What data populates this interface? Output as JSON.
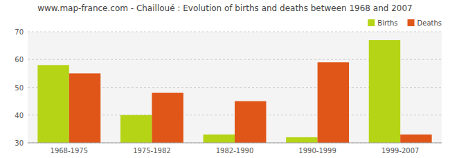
{
  "chart_data": {
    "type": "bar",
    "title": "www.map-france.com - Chailloué : Evolution of births and deaths between 1968 and 2007",
    "categories": [
      "1968-1975",
      "1975-1982",
      "1982-1990",
      "1990-1999",
      "1999-2007"
    ],
    "series": [
      {
        "name": "Births",
        "color": "#b5d416",
        "values": [
          58,
          40,
          33,
          32,
          67
        ]
      },
      {
        "name": "Deaths",
        "color": "#e05518",
        "values": [
          55,
          48,
          45,
          59,
          33
        ]
      }
    ],
    "ylim": [
      30,
      70
    ],
    "yticks": [
      30,
      40,
      50,
      60,
      70
    ],
    "grid": true,
    "legend": "upper right"
  }
}
